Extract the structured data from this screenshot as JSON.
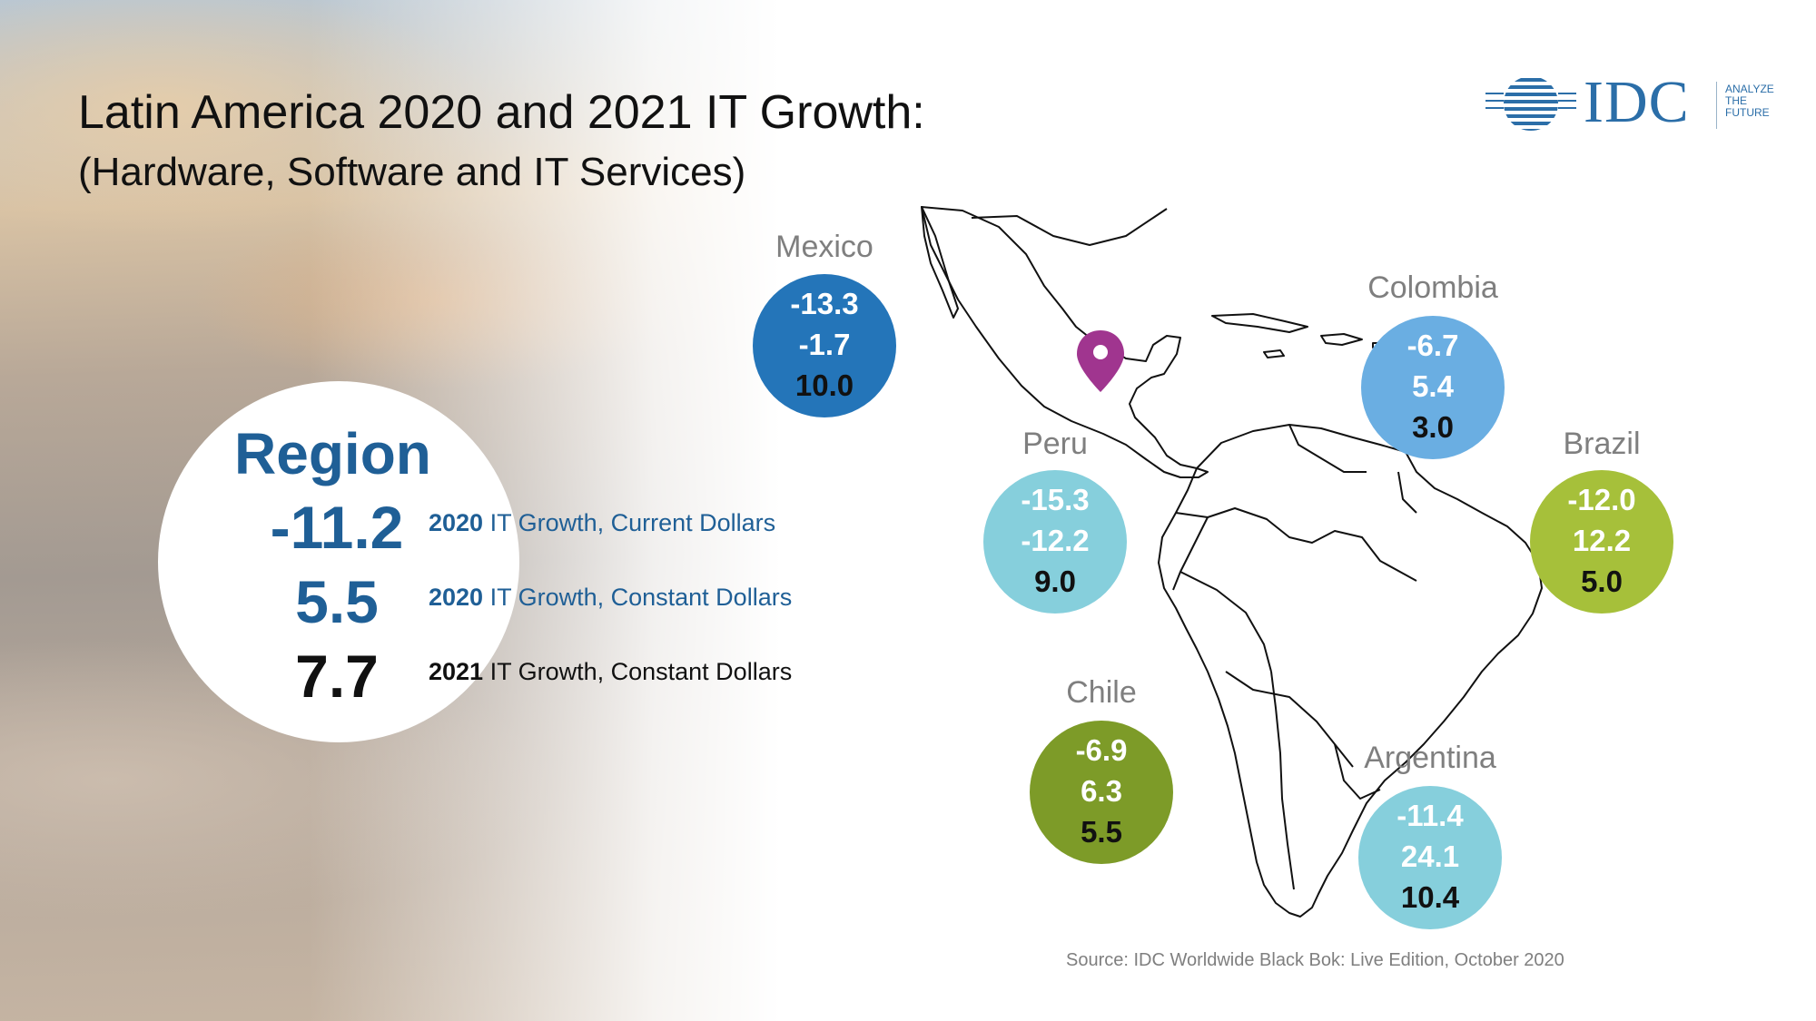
{
  "title": "Latin America 2020 and 2021 IT Growth:",
  "subtitle": "(Hardware, Software and IT Services)",
  "logo": {
    "name": "IDC",
    "tagline": [
      "ANALYZE",
      "THE",
      "FUTURE"
    ],
    "color": "#2b6ea8"
  },
  "region": {
    "title": "Region",
    "values": [
      "-11.2",
      "5.5",
      "7.7"
    ],
    "legend": [
      {
        "year": "2020",
        "text": " IT Growth, Current Dollars"
      },
      {
        "year": "2020",
        "text": " IT Growth, Constant Dollars"
      },
      {
        "year": "2021",
        "text": " IT Growth, Constant Dollars"
      }
    ]
  },
  "countries": [
    {
      "name": "Mexico",
      "values": [
        "-13.3",
        "-1.7",
        "10.0"
      ],
      "color": "#2475b9"
    },
    {
      "name": "Colombia",
      "values": [
        "-6.7",
        "5.4",
        "3.0"
      ],
      "color": "#6aaee2"
    },
    {
      "name": "Peru",
      "values": [
        "-15.3",
        "-12.2",
        "9.0"
      ],
      "color": "#86cfdc"
    },
    {
      "name": "Brazil",
      "values": [
        "-12.0",
        "12.2",
        "5.0"
      ],
      "color": "#a6c03a"
    },
    {
      "name": "Chile",
      "values": [
        "-6.9",
        "6.3",
        "5.5"
      ],
      "color": "#7d9b28"
    },
    {
      "name": "Argentina",
      "values": [
        "-11.4",
        "24.1",
        "10.4"
      ],
      "color": "#86cfdc"
    }
  ],
  "map": {
    "marker_icon": "map-pin-icon",
    "marker_color": "#a0358f"
  },
  "source": "Source: IDC Worldwide Black Bok: Live Edition, October 2020"
}
